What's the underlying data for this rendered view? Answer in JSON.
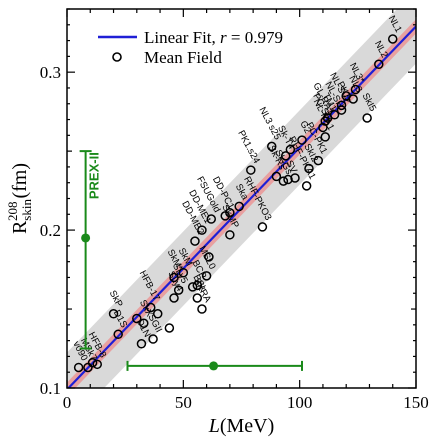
{
  "chart_data": {
    "type": "scatter",
    "title": "",
    "xlabel": "L(MeV)",
    "ylabel": "R_skin^208 (fm)",
    "xlim": [
      0,
      150
    ],
    "ylim": [
      0.1,
      0.34
    ],
    "x_ticks": [
      0,
      50,
      100,
      150
    ],
    "y_ticks": [
      0.1,
      0.2,
      0.3
    ],
    "legend": {
      "placement": "top-left",
      "entries": [
        {
          "label": "Linear Fit, r = 0.979",
          "color": "#1f1fd6",
          "marker": "line"
        },
        {
          "label": "Mean Field",
          "color": "#000000",
          "marker": "open-circle"
        }
      ]
    },
    "fit": {
      "r": 0.979,
      "line": [
        [
          0,
          0.099
        ],
        [
          150,
          0.329
        ]
      ],
      "color": "#1f1fd6",
      "inner_band_color": "#e8a0a0",
      "outer_band_color": "#d9d9d9"
    },
    "points": [
      {
        "label": "NL1",
        "x": 140,
        "y": 0.321
      },
      {
        "label": "NL2",
        "x": 134,
        "y": 0.305
      },
      {
        "label": "NL3*",
        "x": 124,
        "y": 0.289
      },
      {
        "label": "NL3",
        "x": 123,
        "y": 0.283
      },
      {
        "label": "PK1",
        "x": 118,
        "y": 0.279
      },
      {
        "label": "NL-SH",
        "x": 115,
        "y": 0.273
      },
      {
        "label": "TM1",
        "x": 112,
        "y": 0.271
      },
      {
        "label": "NL-SV2",
        "x": 118,
        "y": 0.276
      },
      {
        "label": "G2",
        "x": 101,
        "y": 0.257
      },
      {
        "label": "NL3 s25",
        "x": 88,
        "y": 0.253
      },
      {
        "label": "Sk-T4",
        "x": 94,
        "y": 0.247
      },
      {
        "label": "PK1.s24",
        "x": 79,
        "y": 0.238
      },
      {
        "label": "Sk-Rs",
        "x": 90,
        "y": 0.234
      },
      {
        "label": "GL-RA1",
        "x": 111,
        "y": 0.269
      },
      {
        "label": "PC-SH",
        "x": 110,
        "y": 0.265
      },
      {
        "label": "NL-RA1",
        "x": 111,
        "y": 0.259
      },
      {
        "label": "PC-PK1",
        "x": 108,
        "y": 0.244
      },
      {
        "label": "SkI5",
        "x": 129,
        "y": 0.271
      },
      {
        "label": "SkI2",
        "x": 104,
        "y": 0.239
      },
      {
        "label": "RHF-PKA1",
        "x": 103,
        "y": 0.228
      },
      {
        "label": "Sk-Gs",
        "x": 93,
        "y": 0.231
      },
      {
        "label": "SV",
        "x": 95,
        "y": 0.232
      },
      {
        "label": "Ska",
        "x": 74,
        "y": 0.215
      },
      {
        "label": "DD-PC1",
        "x": 68,
        "y": 0.209
      },
      {
        "label": "FSUGold",
        "x": 62,
        "y": 0.207
      },
      {
        "label": "DD-ME1",
        "x": 58,
        "y": 0.2
      },
      {
        "label": "DD-ME2",
        "x": 55,
        "y": 0.193
      },
      {
        "label": "SkMP",
        "x": 70,
        "y": 0.197
      },
      {
        "label": "RHF-PKO3",
        "x": 84,
        "y": 0.202
      },
      {
        "label": "SkM*",
        "x": 46,
        "y": 0.17
      },
      {
        "label": "SkM",
        "x": 50,
        "y": 0.173
      },
      {
        "label": "MSL0",
        "x": 60,
        "y": 0.171
      },
      {
        "label": "BCP",
        "x": 56,
        "y": 0.165
      },
      {
        "label": "BSk",
        "x": 56,
        "y": 0.157
      },
      {
        "label": "SKRA",
        "x": 58,
        "y": 0.15
      },
      {
        "label": "SLy5",
        "x": 48,
        "y": 0.162
      },
      {
        "label": "SLy4",
        "x": 46,
        "y": 0.157
      },
      {
        "label": "HFB-17",
        "x": 36,
        "y": 0.151
      },
      {
        "label": "SkX",
        "x": 33,
        "y": 0.141
      },
      {
        "label": "SkP",
        "x": 20,
        "y": 0.147
      },
      {
        "label": "SGII",
        "x": 37,
        "y": 0.131
      },
      {
        "label": "D1S",
        "x": 22,
        "y": 0.134
      },
      {
        "label": "D1N",
        "x": 32,
        "y": 0.128
      },
      {
        "label": "HFB-8",
        "x": 13,
        "y": 0.115
      },
      {
        "label": "MSk7",
        "x": 9,
        "y": 0.113
      },
      {
        "label": "v090",
        "x": 5,
        "y": 0.113
      },
      {
        "label": "",
        "x": 39,
        "y": 0.147
      },
      {
        "label": "",
        "x": 44,
        "y": 0.138
      },
      {
        "label": "",
        "x": 61,
        "y": 0.183
      },
      {
        "label": "",
        "x": 54,
        "y": 0.164
      },
      {
        "label": "",
        "x": 30,
        "y": 0.144
      },
      {
        "label": "",
        "x": 11,
        "y": 0.116
      },
      {
        "label": "",
        "x": 70,
        "y": 0.211
      },
      {
        "label": "",
        "x": 96,
        "y": 0.251
      },
      {
        "label": "",
        "x": 120,
        "y": 0.285
      },
      {
        "label": "",
        "x": 98,
        "y": 0.233
      }
    ],
    "prex": {
      "label": "PREX-II",
      "x": 8,
      "y": 0.195,
      "y_err": [
        0.125,
        0.25
      ],
      "color": "#1a8a1a"
    },
    "l_constraint": {
      "x": 63,
      "y": 0.114,
      "x_err": [
        26,
        101
      ],
      "color": "#1a8a1a"
    }
  }
}
